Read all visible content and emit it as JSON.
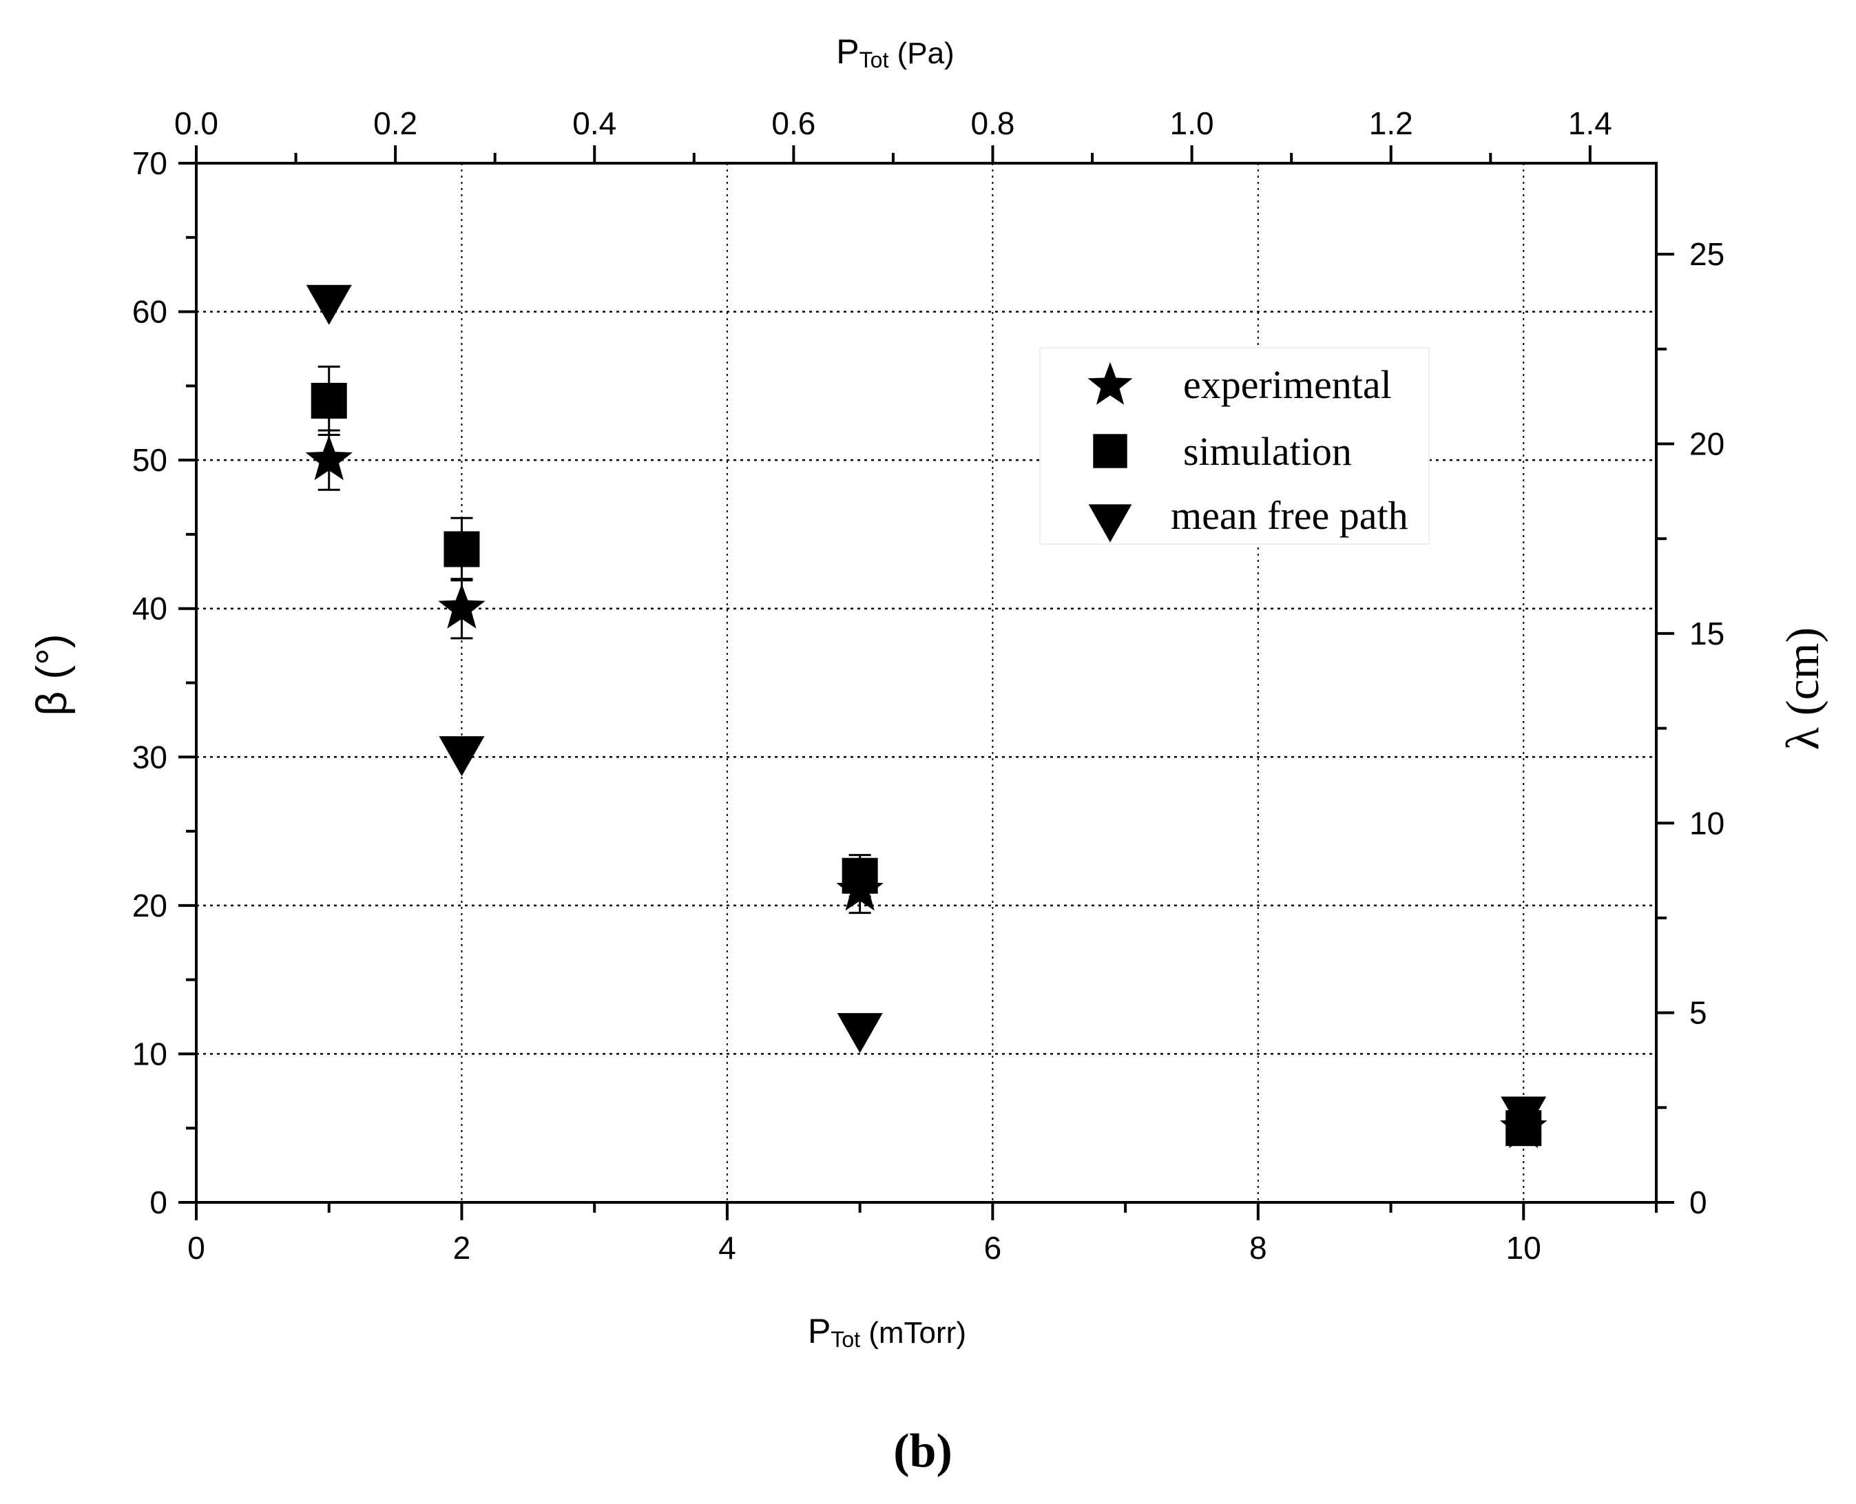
{
  "chart_data": {
    "type": "scatter",
    "caption": "(b)",
    "x_bottom": {
      "label_main": "P",
      "label_sub": "Tot",
      "label_unit": " (mTorr)",
      "range": [
        0,
        11
      ],
      "ticks": [
        0,
        2,
        4,
        6,
        8,
        10
      ],
      "minor_ticks": [
        1,
        3,
        5,
        7,
        9,
        11
      ]
    },
    "x_top": {
      "label_main": "P",
      "label_sub": "Tot",
      "label_unit": " (Pa)",
      "range": [
        0,
        1.4665
      ],
      "ticks": [
        0.0,
        0.2,
        0.4,
        0.6,
        0.8,
        1.0,
        1.2,
        1.4
      ],
      "tick_labels": [
        "0.0",
        "0.2",
        "0.4",
        "0.6",
        "0.8",
        "1.0",
        "1.2",
        "1.4"
      ],
      "minor_ticks": [
        0.1,
        0.3,
        0.5,
        0.7,
        0.9,
        1.1,
        1.3
      ]
    },
    "y_left": {
      "label": "β (°)",
      "range": [
        0,
        70
      ],
      "ticks": [
        0,
        10,
        20,
        30,
        40,
        50,
        60,
        70
      ],
      "minor_ticks": [
        5,
        15,
        25,
        35,
        45,
        55,
        65
      ]
    },
    "y_right": {
      "label": "λ (cm)",
      "range": [
        0,
        27.4
      ],
      "ticks": [
        0,
        5,
        10,
        15,
        20,
        25
      ],
      "minor_ticks": [
        2.5,
        7.5,
        12.5,
        17.5,
        22.5
      ]
    },
    "grid": true,
    "grid_x": [
      2,
      4,
      6,
      8,
      10
    ],
    "grid_y": [
      10,
      20,
      30,
      40,
      50,
      60
    ],
    "legend_position": "top-right",
    "series": [
      {
        "name": "experimental",
        "marker": "star",
        "axis": "left",
        "x": [
          1,
          2,
          5,
          10
        ],
        "y": [
          50,
          40,
          21,
          5
        ],
        "yerr": [
          2,
          2,
          1.5,
          0
        ]
      },
      {
        "name": "simulation",
        "marker": "square",
        "axis": "left",
        "x": [
          1,
          2,
          5,
          10
        ],
        "y": [
          54,
          44,
          22,
          5
        ],
        "yerr": [
          2.3,
          2.1,
          1.4,
          0
        ]
      },
      {
        "name": "mean free path",
        "marker": "triangle-down",
        "axis": "right",
        "x": [
          1,
          2,
          5,
          10
        ],
        "y": [
          23.7,
          11.8,
          4.5,
          2.3
        ],
        "yerr": [
          0,
          0,
          0,
          0
        ]
      }
    ],
    "colors": {
      "marker": "#000000",
      "grid": "#000000",
      "axis": "#000000"
    }
  }
}
